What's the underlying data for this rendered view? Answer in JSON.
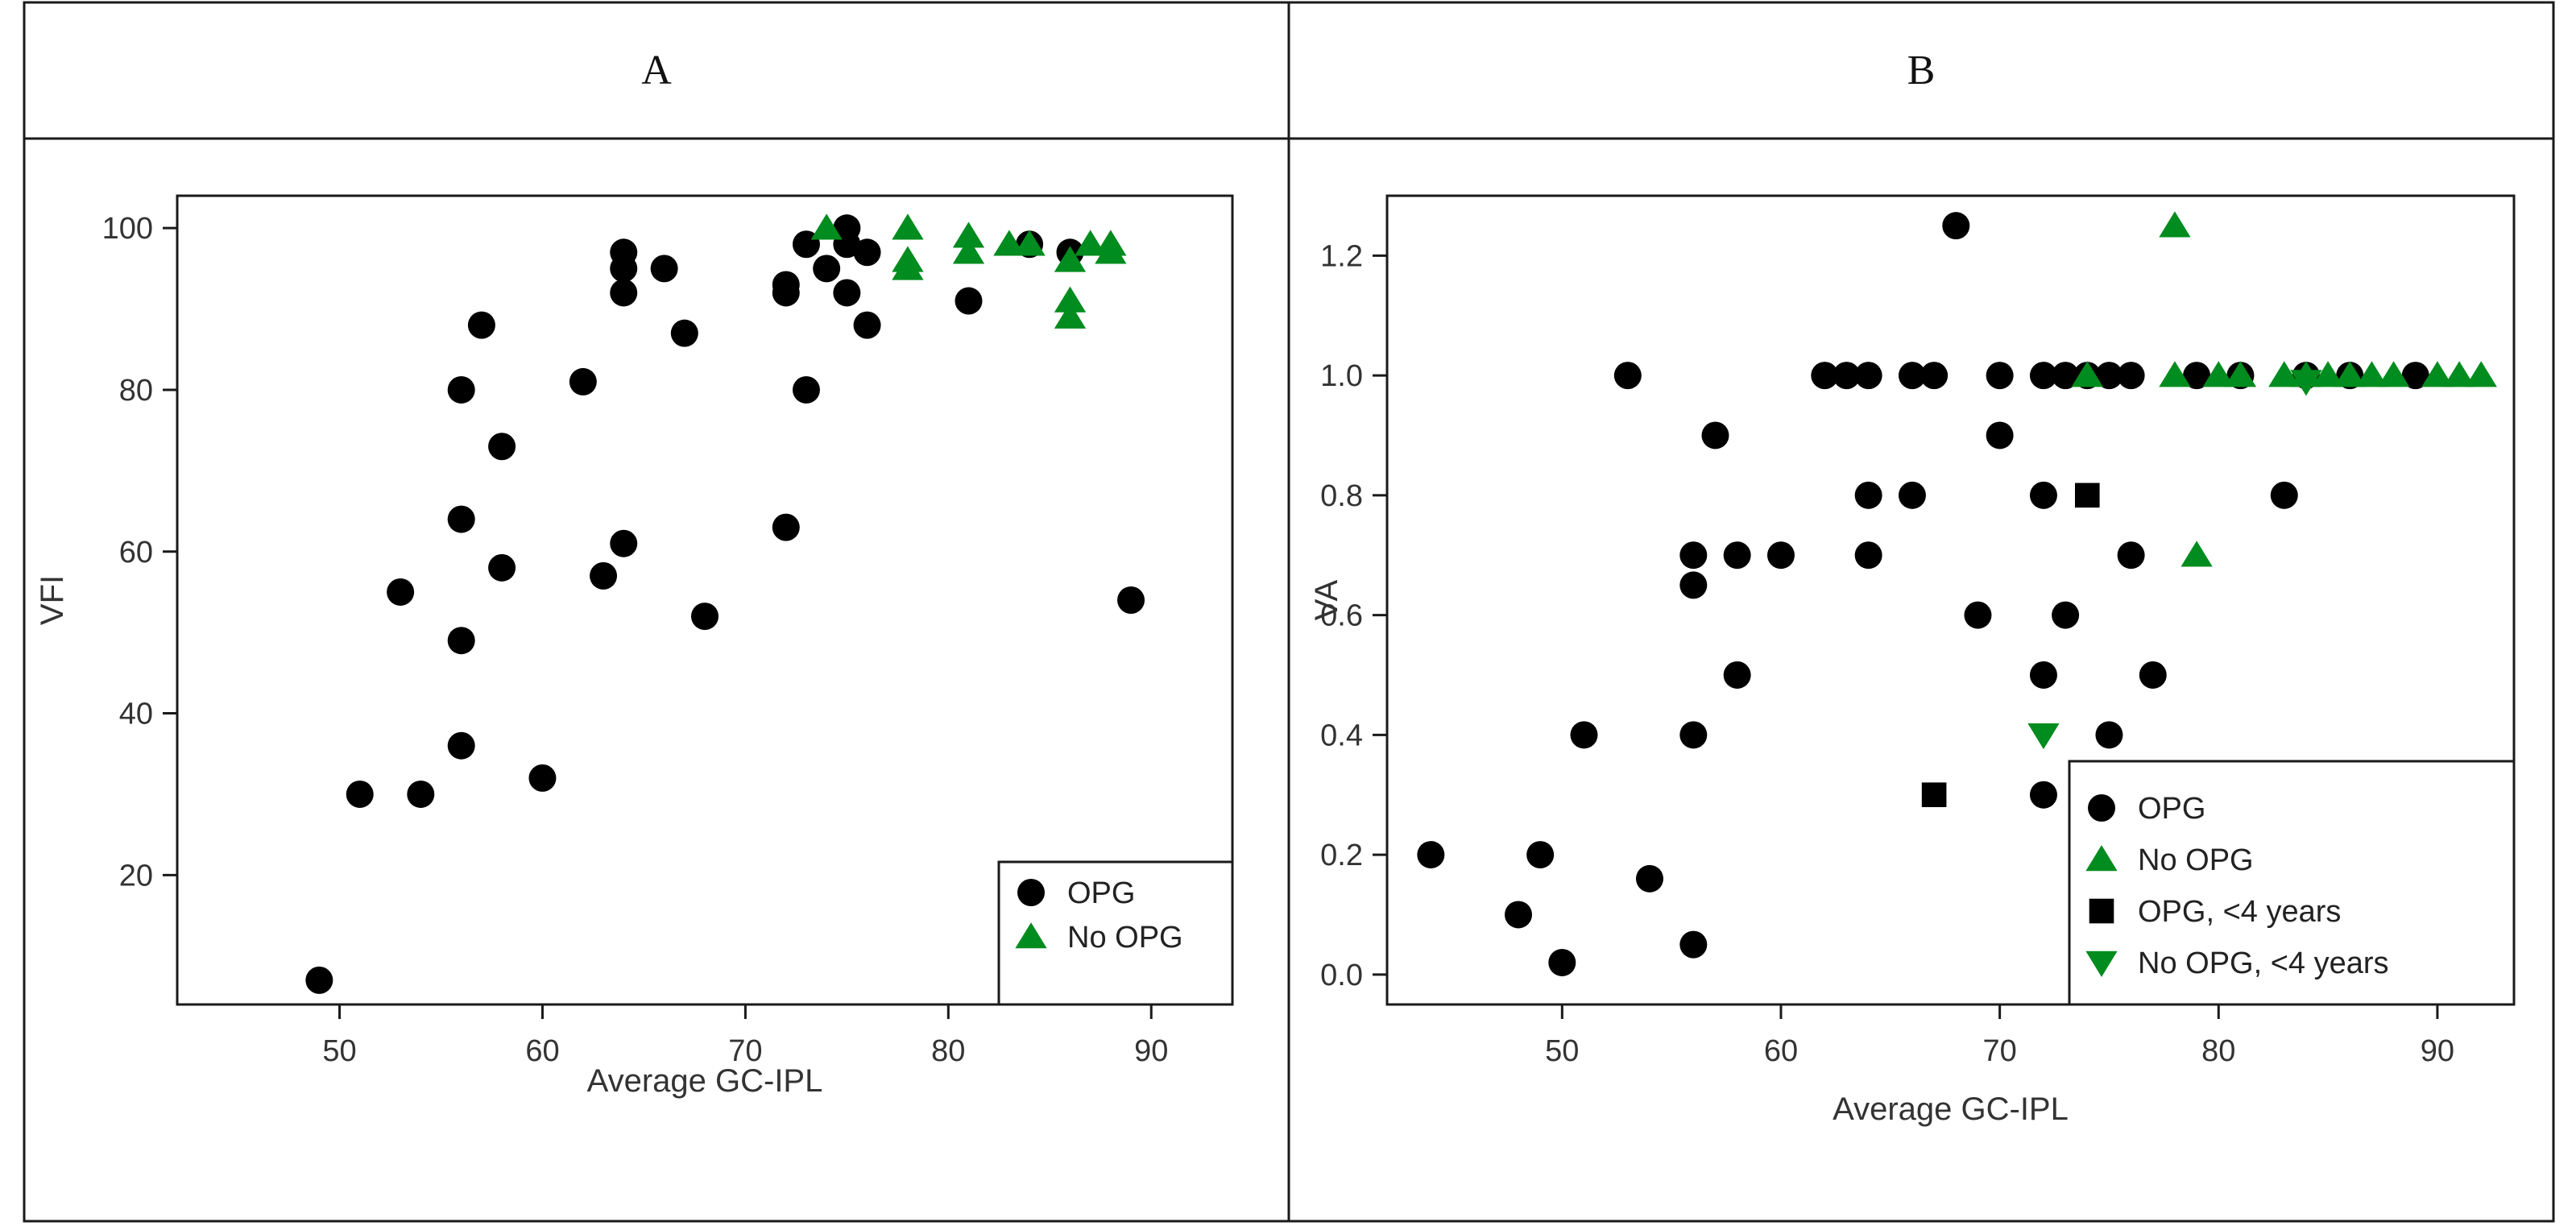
{
  "figure": {
    "panel_labels": [
      "A",
      "B"
    ]
  },
  "colors": {
    "opg": "#000000",
    "no_opg": "#008c1e",
    "frame": "#1a1a1a"
  },
  "chart_data": [
    {
      "type": "scatter",
      "panel": "A",
      "xlabel": "Average GC-IPL",
      "ylabel": "VFI",
      "xlim": [
        42,
        94
      ],
      "ylim": [
        4,
        104
      ],
      "xticks": [
        50,
        60,
        70,
        80,
        90
      ],
      "yticks": [
        20,
        40,
        60,
        80,
        100
      ],
      "legend": {
        "position": "bottom-right",
        "entries": [
          "OPG",
          "No OPG"
        ]
      },
      "series": [
        {
          "name": "OPG",
          "marker": "circle",
          "points": [
            [
              49,
              7
            ],
            [
              51,
              30
            ],
            [
              53,
              55
            ],
            [
              54,
              30
            ],
            [
              56,
              80
            ],
            [
              56,
              64
            ],
            [
              56,
              49
            ],
            [
              56,
              36
            ],
            [
              57,
              88
            ],
            [
              58,
              73
            ],
            [
              58,
              58
            ],
            [
              60,
              32
            ],
            [
              62,
              81
            ],
            [
              63,
              57
            ],
            [
              64,
              97
            ],
            [
              64,
              95
            ],
            [
              64,
              92
            ],
            [
              64,
              61
            ],
            [
              66,
              95
            ],
            [
              67,
              87
            ],
            [
              68,
              52
            ],
            [
              72,
              93
            ],
            [
              72,
              92
            ],
            [
              72,
              63
            ],
            [
              73,
              98
            ],
            [
              73,
              80
            ],
            [
              74,
              95
            ],
            [
              75,
              100
            ],
            [
              75,
              98
            ],
            [
              75,
              92
            ],
            [
              76,
              97
            ],
            [
              76,
              88
            ],
            [
              81,
              91
            ],
            [
              84,
              98
            ],
            [
              86,
              97
            ],
            [
              89,
              54
            ]
          ]
        },
        {
          "name": "No OPG",
          "marker": "triangle-up",
          "points": [
            [
              74,
              100
            ],
            [
              78,
              100
            ],
            [
              78,
              96
            ],
            [
              78,
              95
            ],
            [
              81,
              99
            ],
            [
              81,
              97
            ],
            [
              83,
              98
            ],
            [
              84,
              98
            ],
            [
              86,
              96
            ],
            [
              86,
              91
            ],
            [
              86,
              89
            ],
            [
              87,
              98
            ],
            [
              88,
              98
            ],
            [
              88,
              97
            ]
          ]
        }
      ]
    },
    {
      "type": "scatter",
      "panel": "B",
      "xlabel": "Average GC-IPL",
      "ylabel": "VA",
      "xlim": [
        42,
        93.5
      ],
      "ylim": [
        -0.05,
        1.3
      ],
      "xticks": [
        50,
        60,
        70,
        80,
        90
      ],
      "yticks": [
        0.0,
        0.2,
        0.4,
        0.6,
        0.8,
        1.0,
        1.2
      ],
      "ytick_labels": [
        "0.0",
        "0.2",
        "0.4",
        "0.6",
        "0.8",
        "1.0",
        "1.2"
      ],
      "legend": {
        "position": "bottom-right",
        "entries": [
          "OPG",
          "No OPG",
          "OPG, <4 years",
          "No OPG, <4 years"
        ]
      },
      "series": [
        {
          "name": "OPG",
          "marker": "circle",
          "points": [
            [
              44,
              0.2
            ],
            [
              48,
              0.1
            ],
            [
              49,
              0.2
            ],
            [
              50,
              0.02
            ],
            [
              51,
              0.4
            ],
            [
              53,
              1.0
            ],
            [
              54,
              0.16
            ],
            [
              56,
              0.7
            ],
            [
              56,
              0.65
            ],
            [
              56,
              0.4
            ],
            [
              56,
              0.05
            ],
            [
              57,
              0.9
            ],
            [
              58,
              0.7
            ],
            [
              58,
              0.5
            ],
            [
              60,
              0.7
            ],
            [
              62,
              1.0
            ],
            [
              63,
              1.0
            ],
            [
              64,
              1.0
            ],
            [
              64,
              0.8
            ],
            [
              64,
              0.7
            ],
            [
              66,
              1.0
            ],
            [
              66,
              0.8
            ],
            [
              67,
              1.0
            ],
            [
              68,
              1.25
            ],
            [
              69,
              0.6
            ],
            [
              70,
              1.0
            ],
            [
              70,
              0.9
            ],
            [
              72,
              1.0
            ],
            [
              72,
              0.8
            ],
            [
              72,
              0.5
            ],
            [
              72,
              0.3
            ],
            [
              73,
              1.0
            ],
            [
              73,
              0.6
            ],
            [
              74,
              1.0
            ],
            [
              75,
              1.0
            ],
            [
              75,
              0.4
            ],
            [
              76,
              1.0
            ],
            [
              76,
              0.7
            ],
            [
              77,
              0.5
            ],
            [
              79,
              1.0
            ],
            [
              81,
              1.0
            ],
            [
              83,
              0.8
            ],
            [
              84,
              1.0
            ],
            [
              86,
              1.0
            ],
            [
              89,
              1.0
            ]
          ]
        },
        {
          "name": "No OPG",
          "marker": "triangle-up",
          "points": [
            [
              74,
              1.0
            ],
            [
              78,
              1.25
            ],
            [
              78,
              1.0
            ],
            [
              79,
              0.7
            ],
            [
              80,
              1.0
            ],
            [
              81,
              1.0
            ],
            [
              83,
              1.0
            ],
            [
              84,
              1.0
            ],
            [
              85,
              1.0
            ],
            [
              86,
              1.0
            ],
            [
              87,
              1.0
            ],
            [
              88,
              1.0
            ],
            [
              90,
              1.0
            ],
            [
              91,
              1.0
            ],
            [
              92,
              1.0
            ]
          ]
        },
        {
          "name": "OPG, <4 years",
          "marker": "square",
          "points": [
            [
              67,
              0.3
            ],
            [
              74,
              0.8
            ]
          ]
        },
        {
          "name": "No OPG, <4 years",
          "marker": "triangle-down",
          "points": [
            [
              72,
              0.4
            ],
            [
              84,
              0.99
            ]
          ]
        }
      ]
    }
  ]
}
